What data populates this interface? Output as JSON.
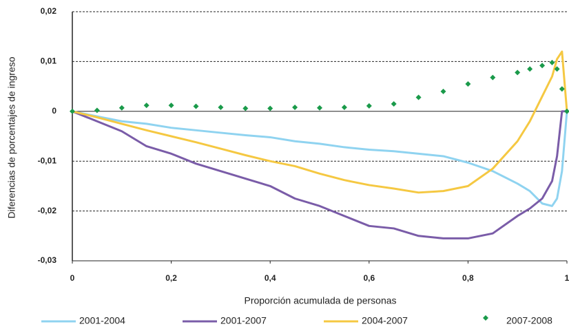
{
  "chart_data": {
    "type": "line",
    "xlabel": "Proporción acumulada de personas",
    "ylabel": "Diferencias de porcentajes de ingreso",
    "x": [
      0,
      0.05,
      0.1,
      0.15,
      0.2,
      0.25,
      0.3,
      0.35,
      0.4,
      0.45,
      0.5,
      0.55,
      0.6,
      0.65,
      0.7,
      0.75,
      0.8,
      0.85,
      0.9,
      0.925,
      0.95,
      0.97,
      0.98,
      0.99,
      1
    ],
    "series": [
      {
        "name": "2001-2004",
        "color": "#8fd3f0",
        "style": "line",
        "values": [
          0,
          -0.001,
          -0.002,
          -0.0025,
          -0.0033,
          -0.0038,
          -0.0043,
          -0.0048,
          -0.0052,
          -0.006,
          -0.0065,
          -0.0072,
          -0.0077,
          -0.008,
          -0.0085,
          -0.009,
          -0.0103,
          -0.012,
          -0.0145,
          -0.016,
          -0.0185,
          -0.019,
          -0.0175,
          -0.012,
          0
        ]
      },
      {
        "name": "2001-2007",
        "color": "#7a5ca8",
        "style": "line",
        "values": [
          0,
          -0.002,
          -0.004,
          -0.007,
          -0.0085,
          -0.0105,
          -0.012,
          -0.0135,
          -0.015,
          -0.0175,
          -0.019,
          -0.021,
          -0.023,
          -0.0235,
          -0.025,
          -0.0255,
          -0.0255,
          -0.0245,
          -0.021,
          -0.0195,
          -0.0175,
          -0.014,
          -0.009,
          0,
          0
        ]
      },
      {
        "name": "2004-2007",
        "color": "#f5c842",
        "style": "line",
        "values": [
          0,
          -0.0012,
          -0.0025,
          -0.0038,
          -0.005,
          -0.0062,
          -0.0075,
          -0.0088,
          -0.01,
          -0.011,
          -0.0125,
          -0.0138,
          -0.0148,
          -0.0155,
          -0.0163,
          -0.016,
          -0.015,
          -0.0115,
          -0.006,
          -0.002,
          0.003,
          0.007,
          0.0105,
          0.012,
          0
        ]
      },
      {
        "name": "2007-2008",
        "color": "#1a9a4a",
        "style": "markers",
        "values": [
          0,
          0.0002,
          0.0007,
          0.0012,
          0.0012,
          0.001,
          0.0008,
          0.0006,
          0.0006,
          0.0008,
          0.0007,
          0.0008,
          0.0011,
          0.0015,
          0.0028,
          0.004,
          0.0055,
          0.0068,
          0.0078,
          0.0085,
          0.0092,
          0.0098,
          0.0085,
          0.0045,
          0
        ]
      }
    ],
    "xlim": [
      0,
      1
    ],
    "ylim": [
      -0.03,
      0.02
    ],
    "xticks": [
      0,
      {
        "value": 0.2,
        "label": "0,2"
      },
      {
        "value": 0.4,
        "label": "0,4"
      },
      {
        "value": 0.6,
        "label": "0,6"
      },
      {
        "value": 0.8,
        "label": "0,8"
      },
      1
    ],
    "yticks": [
      {
        "value": -0.03,
        "label": "-0,03"
      },
      {
        "value": -0.02,
        "label": "-0,02"
      },
      {
        "value": -0.01,
        "label": "-0,01"
      },
      0,
      {
        "value": 0.01,
        "label": "0,01"
      },
      {
        "value": 0.02,
        "label": "0,02"
      }
    ],
    "grid": true,
    "legend": "bottom"
  }
}
